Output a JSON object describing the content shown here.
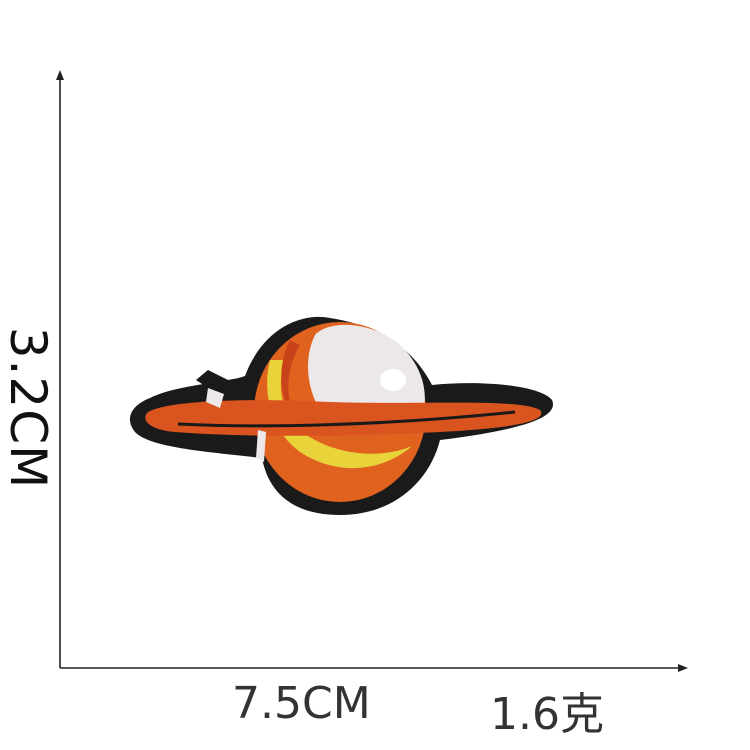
{
  "labels": {
    "height": "3.2CM",
    "width": "7.5CM",
    "weight": "1.6克"
  },
  "colors": {
    "patch_border": "#1a1a1a",
    "ring_orange": "#d9541e",
    "planet_orange": "#e0621f",
    "planet_yellow": "#e9d33a",
    "planet_white": "#ece8ea",
    "highlight_white": "#ffffff"
  }
}
